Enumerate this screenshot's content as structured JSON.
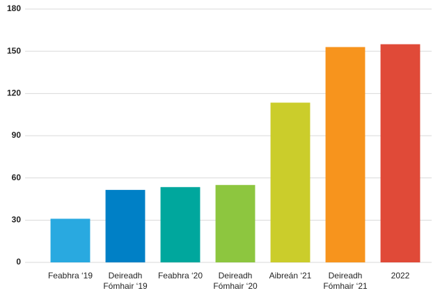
{
  "chart_data": {
    "type": "bar",
    "categories": [
      "Feabhra ‘19",
      "Deireadh Fómhair ‘19",
      "Feabhra ‘20",
      "Deireadh Fómhair ‘20",
      "Aibreán ‘21",
      "Deireadh Fómhair ‘21",
      "2022"
    ],
    "values": [
      31,
      51.5,
      53.5,
      55,
      113.5,
      153,
      155
    ],
    "colors": [
      "#29a9e0",
      "#0080c6",
      "#00a79d",
      "#8dc63f",
      "#cbcd2b",
      "#f7941d",
      "#e04a38"
    ],
    "ylim": [
      0,
      180
    ],
    "yticks": [
      0,
      30,
      60,
      90,
      120,
      150,
      180
    ],
    "grid": true
  }
}
